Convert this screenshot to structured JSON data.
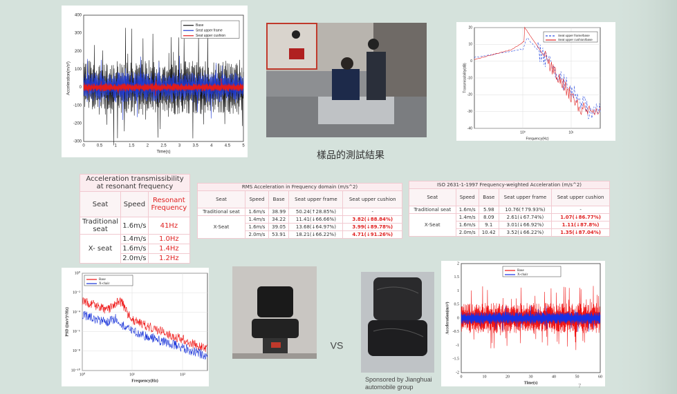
{
  "caption": "樣品的測試結果",
  "plot_time": {
    "y_label": "Acceleration(m/s²)",
    "x_label": "Time(s)",
    "legend": [
      "Base",
      "Seat upper frame",
      "Seat upper cushion"
    ],
    "yticks": [
      "400",
      "300",
      "200",
      "100",
      "0",
      "-100",
      "-200",
      "-300"
    ],
    "xticks": [
      "0",
      "0.5",
      "1",
      "1.5",
      "2",
      "2.5",
      "3",
      "3.5",
      "4",
      "4.5",
      "5"
    ]
  },
  "plot_transmissibility": {
    "y_label": "Transmissibility(dB)",
    "x_label": "Frequency(Hz)",
    "legend": [
      "Seat upper frame/base",
      "Seat upper cushion/base"
    ],
    "yticks": [
      "20",
      "10",
      "0",
      "-10",
      "-20",
      "-30",
      "-40"
    ],
    "xticks": [
      "10⁰",
      "10¹"
    ]
  },
  "table_resonance": {
    "title": "Acceleration transmissibility at resonant frequency",
    "header": [
      "Seat",
      "Speed",
      "Resonant Frequency"
    ],
    "groups": [
      {
        "seat": "Traditional seat",
        "rows": [
          [
            "1.6m/s",
            "41Hz"
          ]
        ]
      },
      {
        "seat": "X- seat",
        "rows": [
          [
            "1.4m/s",
            "1.0Hz"
          ],
          [
            "1.6m/s",
            "1.4Hz"
          ],
          [
            "2.0m/s",
            "1.2Hz"
          ]
        ]
      }
    ]
  },
  "table_rms": {
    "title": "RMS Acceleration in Frequency domain (m/s^2)",
    "header": [
      "Seat",
      "Speed",
      "Base",
      "Seat upper frame",
      "Seat upper cushion"
    ],
    "groups": [
      {
        "seat": "Traditional seat",
        "rows": [
          [
            "1.6m/s",
            "38.99",
            "50.24(↑28.85%)",
            "-"
          ]
        ]
      },
      {
        "seat": "X-Seat",
        "rows": [
          [
            "1.4m/s",
            "34.22",
            "11.41(↓66.66%)",
            "3.82(↓88.84%)"
          ],
          [
            "1.6m/s",
            "39.05",
            "13.68(↓64.97%)",
            "3.99(↓89.78%)"
          ],
          [
            "2.0m/s",
            "53.91",
            "18.21(↓66.22%)",
            "4.71(↓91.26%)"
          ]
        ]
      }
    ]
  },
  "table_iso": {
    "title": "ISO 2631-1-1997 Frequency-weighted Acceleration (m/s^2)",
    "header": [
      "Seat",
      "Speed",
      "Base",
      "Seat upper frame",
      "Seat upper cushion"
    ],
    "groups": [
      {
        "seat": "Traditional seat",
        "rows": [
          [
            "1.6m/s",
            "5.98",
            "10.76(↑79.93%)",
            "-"
          ]
        ]
      },
      {
        "seat": "X-Seat",
        "rows": [
          [
            "1.4m/s",
            "8.09",
            "2.61(↓67.74%)",
            "1.07(↓86.77%)"
          ],
          [
            "1.6m/s",
            "9.1",
            "3.01(↓66.92%)",
            "1.11(↓87.8%)"
          ],
          [
            "2.0m/s",
            "10.42",
            "3.52(↓66.22%)",
            "1.35(↓87.04%)"
          ]
        ]
      }
    ]
  },
  "plot_psd": {
    "y_label": "PSD ((m/s²)²/Hz)",
    "x_label": "Frequency(Hz)",
    "legend": [
      "Base",
      "X-chair"
    ],
    "yticks": [
      "10⁰",
      "10⁻²",
      "10⁻⁴",
      "10⁻⁶",
      "10⁻⁸",
      "10⁻¹⁰"
    ],
    "xticks": [
      "10⁰",
      "10¹",
      "10²"
    ]
  },
  "vs": "VS",
  "sponsor": "Sponsored by Jianghuai automobile group",
  "plot_xchair": {
    "y_label": "Acceleration(m/s²)",
    "x_label": "Time(s)",
    "legend": [
      "Base",
      "X-chair"
    ],
    "yticks": [
      "2",
      "1.5",
      "1",
      "0.5",
      "0",
      "-0.5",
      "-1",
      "-1.5",
      "-2"
    ],
    "xticks": [
      "0",
      "10",
      "20",
      "30",
      "40",
      "50",
      "60"
    ]
  },
  "page_number": "7"
}
